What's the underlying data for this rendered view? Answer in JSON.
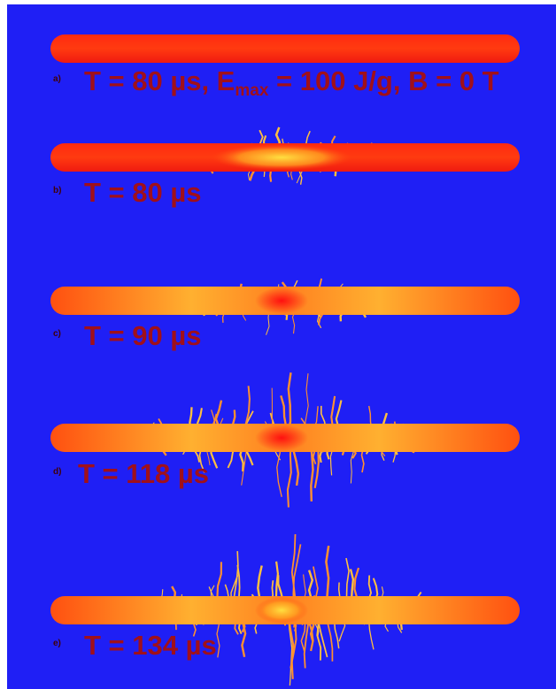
{
  "panels": [
    {
      "label": "a)",
      "caption": [
        "T = 80 µs, E",
        "max",
        " = 100 J/g, B = 0 T"
      ]
    },
    {
      "label": "b)",
      "caption": [
        "T = 80 µs"
      ]
    },
    {
      "label": "c)",
      "caption": [
        "T = 90 µs"
      ]
    },
    {
      "label": "d)",
      "caption": [
        "T = 118 µs"
      ]
    },
    {
      "label": "e)",
      "caption": [
        "T = 134 µs"
      ]
    }
  ]
}
